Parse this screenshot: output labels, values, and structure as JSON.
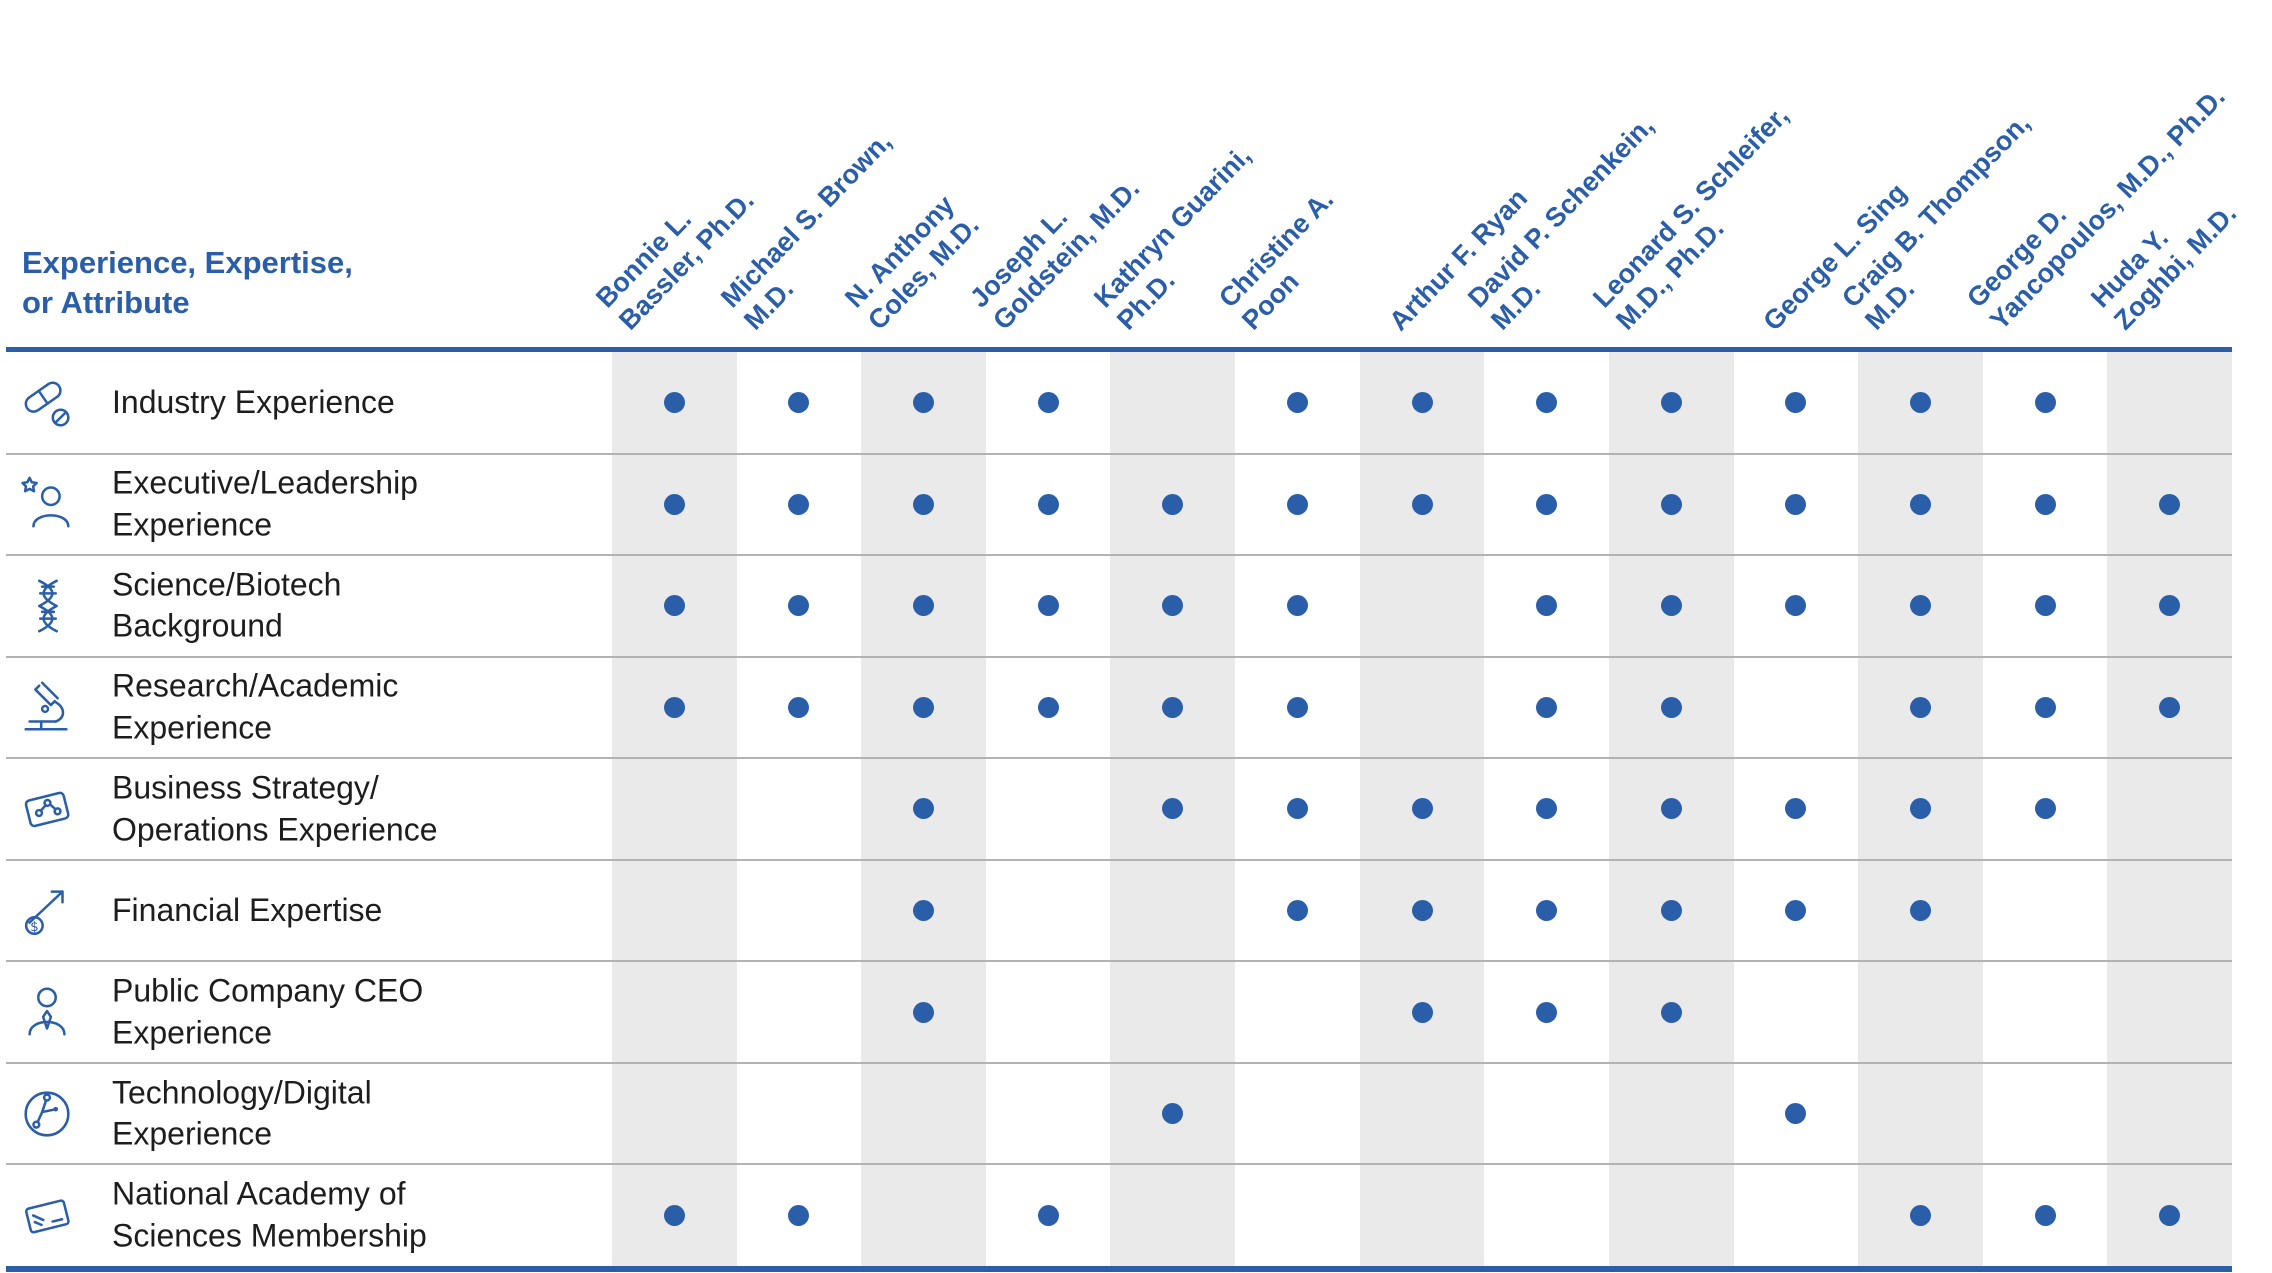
{
  "colors": {
    "blue": "#2b5ea9",
    "dot": "#2b5ea9",
    "column_shade": "#eaeaea",
    "row_divider": "#b3b3b3",
    "label_text": "#1d1d1d"
  },
  "header": {
    "title_lines": [
      "Experience, Expertise,",
      "or Attribute"
    ]
  },
  "directors": [
    {
      "name_lines": [
        "Bonnie L.",
        "Bassler, Ph.D."
      ],
      "shaded": true
    },
    {
      "name_lines": [
        "Michael S. Brown,",
        "M.D."
      ],
      "shaded": false
    },
    {
      "name_lines": [
        "N. Anthony",
        "Coles, M.D."
      ],
      "shaded": true
    },
    {
      "name_lines": [
        "Joseph L.",
        "Goldstein, M.D."
      ],
      "shaded": false
    },
    {
      "name_lines": [
        "Kathryn Guarini,",
        "Ph.D."
      ],
      "shaded": true
    },
    {
      "name_lines": [
        "Christine A.",
        "Poon"
      ],
      "shaded": false
    },
    {
      "name_lines": [
        "Arthur F. Ryan"
      ],
      "shaded": true
    },
    {
      "name_lines": [
        "David P. Schenkein,",
        "M.D."
      ],
      "shaded": false
    },
    {
      "name_lines": [
        "Leonard S. Schleifer,",
        "M.D., Ph.D."
      ],
      "shaded": true
    },
    {
      "name_lines": [
        "George L. Sing"
      ],
      "shaded": false
    },
    {
      "name_lines": [
        "Craig B. Thompson,",
        "M.D."
      ],
      "shaded": true
    },
    {
      "name_lines": [
        "George D.",
        "Yancopoulos, M.D., Ph.D."
      ],
      "shaded": false
    },
    {
      "name_lines": [
        "Huda Y.",
        "Zoghbi, M.D."
      ],
      "shaded": true
    }
  ],
  "rows": [
    {
      "icon": "industry-pills-icon",
      "label_lines": [
        "Industry Experience"
      ]
    },
    {
      "icon": "leadership-person-star-icon",
      "label_lines": [
        "Executive/Leadership",
        "Experience"
      ]
    },
    {
      "icon": "dna-icon",
      "label_lines": [
        "Science/Biotech",
        "Background"
      ]
    },
    {
      "icon": "microscope-icon",
      "label_lines": [
        "Research/Academic",
        "Experience"
      ]
    },
    {
      "icon": "strategy-board-icon",
      "label_lines": [
        "Business Strategy/",
        "Operations Experience"
      ]
    },
    {
      "icon": "financial-growth-icon",
      "label_lines": [
        "Financial Expertise"
      ]
    },
    {
      "icon": "ceo-person-icon",
      "label_lines": [
        "Public Company CEO",
        "Experience"
      ]
    },
    {
      "icon": "technology-globe-icon",
      "label_lines": [
        "Technology/Digital",
        "Experience"
      ]
    },
    {
      "icon": "membership-card-icon",
      "label_lines": [
        "National Academy of",
        "Sciences Membership"
      ]
    }
  ],
  "chart_data": {
    "type": "table",
    "title": "Experience, Expertise, or Attribute",
    "marker": "dot",
    "columns": [
      "Bonnie L. Bassler, Ph.D.",
      "Michael S. Brown, M.D.",
      "N. Anthony Coles, M.D.",
      "Joseph L. Goldstein, M.D.",
      "Kathryn Guarini, Ph.D.",
      "Christine A. Poon",
      "Arthur F. Ryan",
      "David P. Schenkein, M.D.",
      "Leonard S. Schleifer, M.D., Ph.D.",
      "George L. Sing",
      "Craig B. Thompson, M.D.",
      "George D. Yancopoulos, M.D., Ph.D.",
      "Huda Y. Zoghbi, M.D."
    ],
    "rows": [
      {
        "label": "Industry Experience",
        "values": [
          1,
          1,
          1,
          1,
          0,
          1,
          1,
          1,
          1,
          1,
          1,
          1,
          0
        ]
      },
      {
        "label": "Executive/Leadership Experience",
        "values": [
          1,
          1,
          1,
          1,
          1,
          1,
          1,
          1,
          1,
          1,
          1,
          1,
          1
        ]
      },
      {
        "label": "Science/Biotech Background",
        "values": [
          1,
          1,
          1,
          1,
          1,
          1,
          0,
          1,
          1,
          1,
          1,
          1,
          1
        ]
      },
      {
        "label": "Research/Academic Experience",
        "values": [
          1,
          1,
          1,
          1,
          1,
          1,
          0,
          1,
          1,
          0,
          1,
          1,
          1
        ]
      },
      {
        "label": "Business Strategy/Operations Experience",
        "values": [
          0,
          0,
          1,
          0,
          1,
          1,
          1,
          1,
          1,
          1,
          1,
          1,
          0
        ]
      },
      {
        "label": "Financial Expertise",
        "values": [
          0,
          0,
          1,
          0,
          0,
          1,
          1,
          1,
          1,
          1,
          1,
          0,
          0
        ]
      },
      {
        "label": "Public Company CEO Experience",
        "values": [
          0,
          0,
          1,
          0,
          0,
          0,
          1,
          1,
          1,
          0,
          0,
          0,
          0
        ]
      },
      {
        "label": "Technology/Digital Experience",
        "values": [
          0,
          0,
          0,
          0,
          1,
          0,
          0,
          0,
          0,
          1,
          0,
          0,
          0
        ]
      },
      {
        "label": "National Academy of Sciences Membership",
        "values": [
          1,
          1,
          0,
          1,
          0,
          0,
          0,
          0,
          0,
          0,
          1,
          1,
          1
        ]
      }
    ]
  }
}
